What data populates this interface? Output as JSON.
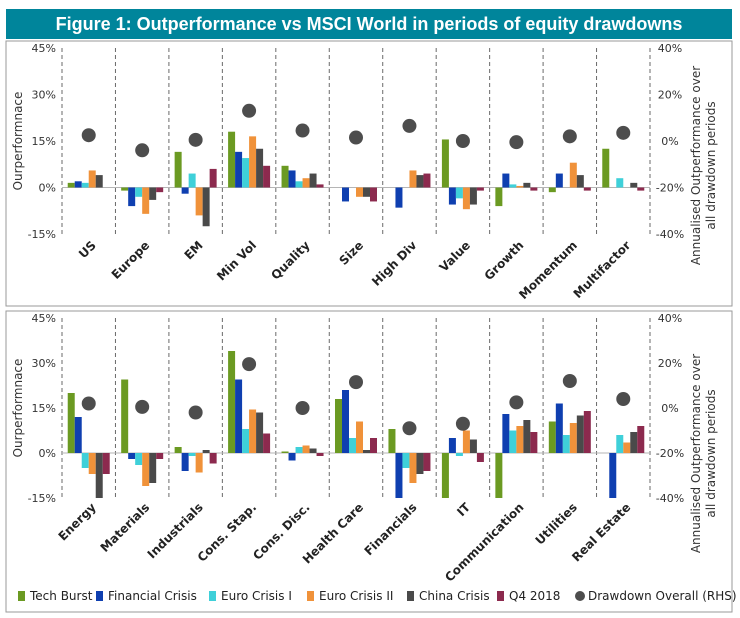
{
  "title": "Figure 1: Outperformance vs MSCI World in periods of equity drawdowns",
  "colors": {
    "title_bg": "#00859b",
    "series": [
      "#6b9a22",
      "#0f3fb0",
      "#3fd0d9",
      "#f0923a",
      "#4a4a4a",
      "#8c2a4e"
    ],
    "overall": "#4d4d4d"
  },
  "legend": [
    "Tech Burst",
    "Financial Crisis",
    "Euro Crisis I",
    "Euro Crisis II",
    "China Crisis",
    "Q4 2018",
    "Drawdown Overall (RHS)"
  ],
  "chart_data": [
    {
      "type": "bar",
      "ylabel": "Ourperformnace",
      "y2label": "Annualised Outperformance over all drawdown periods",
      "ylim": [
        -15,
        45
      ],
      "y2lim": [
        -40,
        40
      ],
      "yticks": [
        "45%",
        "30%",
        "15%",
        "0%",
        "-15%"
      ],
      "y2ticks": [
        "40%",
        "20%",
        "0%",
        "-20%",
        "-40%"
      ],
      "categories": [
        "US",
        "Europe",
        "EM",
        "Min Vol",
        "Quality",
        "Size",
        "High Div",
        "Value",
        "Growth",
        "Momentum",
        "Multifactor"
      ],
      "series": [
        {
          "name": "Tech Burst",
          "values": [
            1.5,
            -1,
            11.5,
            18,
            7,
            0,
            0,
            15.5,
            -6,
            -1.5,
            12.5
          ]
        },
        {
          "name": "Financial Crisis",
          "values": [
            2,
            -6,
            -2,
            11.5,
            5.5,
            -4.5,
            -6.5,
            -5.5,
            4.5,
            4.5,
            0
          ]
        },
        {
          "name": "Euro Crisis I",
          "values": [
            1.5,
            -3,
            4.5,
            9.5,
            2,
            0,
            0,
            -3.5,
            1,
            0,
            3
          ]
        },
        {
          "name": "Euro Crisis II",
          "values": [
            5.5,
            -8.5,
            -9,
            16.5,
            3,
            -3,
            5.5,
            -7,
            0.5,
            8,
            0
          ]
        },
        {
          "name": "China Crisis",
          "values": [
            4,
            -4,
            -12.5,
            12.5,
            4.5,
            -3,
            4,
            -5.5,
            1.5,
            4,
            1.5
          ]
        },
        {
          "name": "Q4 2018",
          "values": [
            0,
            -1.5,
            6,
            7,
            1,
            -4.5,
            4.5,
            -1,
            -1,
            -1,
            -1
          ]
        }
      ],
      "overall": [
        2.5,
        -4,
        0.5,
        13,
        4.5,
        1.5,
        6.5,
        0,
        -0.5,
        2,
        3.5
      ]
    },
    {
      "type": "bar",
      "ylabel": "Ourperformnace",
      "y2label": "Annualised Outperformance over all drawdown periods",
      "ylim": [
        -15,
        45
      ],
      "y2lim": [
        -40,
        40
      ],
      "yticks": [
        "45%",
        "30%",
        "15%",
        "0%",
        "-15%"
      ],
      "y2ticks": [
        "40%",
        "20%",
        "0%",
        "-20%",
        "-40%"
      ],
      "categories": [
        "Energy",
        "Materials",
        "Industrials",
        "Cons. Stap.",
        "Cons. Disc.",
        "Health Care",
        "Financials",
        "IT",
        "Communication",
        "Utilities",
        "Real Estate"
      ],
      "series": [
        {
          "name": "Tech Burst",
          "values": [
            20,
            24.5,
            2,
            34,
            0.5,
            18,
            8,
            -15,
            -15,
            10.5,
            0
          ]
        },
        {
          "name": "Financial Crisis",
          "values": [
            12,
            -2,
            -6,
            24.5,
            -2.5,
            21,
            -15,
            5,
            13,
            16.5,
            -15
          ]
        },
        {
          "name": "Euro Crisis I",
          "values": [
            -5,
            -4,
            -1,
            8,
            2,
            5,
            -5,
            -1,
            7.5,
            6,
            6
          ]
        },
        {
          "name": "Euro Crisis II",
          "values": [
            -7,
            -11,
            -6.5,
            14.5,
            2.5,
            10.5,
            -10,
            7.5,
            9,
            10,
            3.5
          ]
        },
        {
          "name": "China Crisis",
          "values": [
            -15,
            -10,
            1,
            13.5,
            1.5,
            1,
            -7,
            4.5,
            11,
            12.5,
            7
          ]
        },
        {
          "name": "Q4 2018",
          "values": [
            -7,
            -2,
            -3.5,
            6.5,
            -1,
            5,
            -6,
            -3,
            7,
            14,
            9
          ]
        }
      ],
      "overall": [
        2,
        0.5,
        -2,
        19.5,
        0,
        11.5,
        -9,
        -7,
        2.5,
        12,
        4
      ]
    }
  ]
}
